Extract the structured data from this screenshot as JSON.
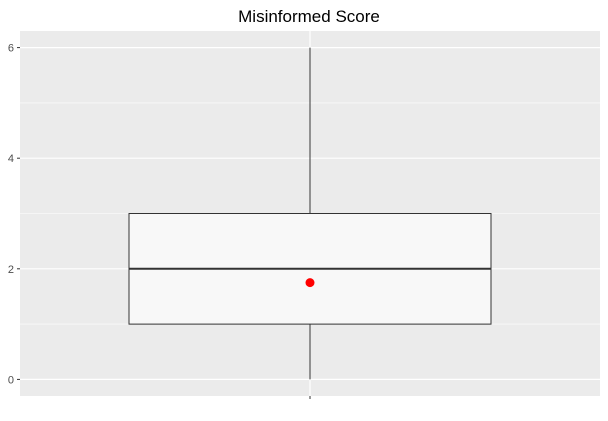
{
  "chart_data": {
    "type": "boxplot",
    "title": "Misinformed Score",
    "xlabel": "",
    "ylabel": "",
    "ylim": [
      -0.3,
      6.3
    ],
    "y_ticks": [
      0,
      2,
      4,
      6
    ],
    "y_tick_labels": [
      "0",
      "2",
      "4",
      "6"
    ],
    "grid": true,
    "box": {
      "min": 0,
      "q1": 1,
      "median": 2,
      "q3": 3,
      "max": 6,
      "mean": 1.75
    }
  },
  "colors": {
    "panel_background": "#ebebeb",
    "grid_line": "#ffffff",
    "box_fill": "#f8f8f8",
    "box_outline": "#333333",
    "whisker": "#333333",
    "mean_point": "#ff0000",
    "tick_label": "#4d4d4d"
  }
}
